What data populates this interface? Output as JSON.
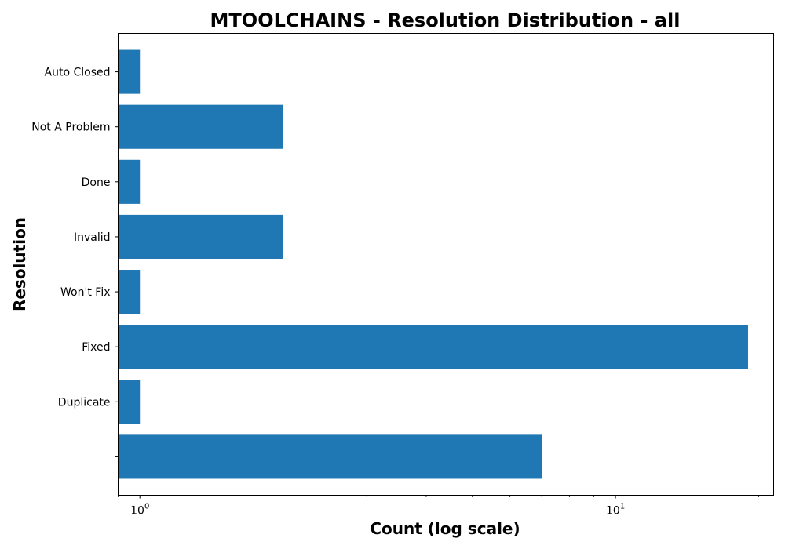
{
  "chart_data": {
    "type": "bar",
    "orientation": "horizontal",
    "title": "MTOOLCHAINS - Resolution Distribution - all",
    "xlabel": "Count (log scale)",
    "ylabel": "Resolution",
    "x_scale": "log",
    "xlim": [
      0.9,
      21.5
    ],
    "x_ticks": [
      {
        "value": 1,
        "base": "10",
        "exp": "0"
      },
      {
        "value": 10,
        "base": "10",
        "exp": "1"
      }
    ],
    "grid": false,
    "bar_color": "#1f77b4",
    "categories": [
      "",
      "Duplicate",
      "Fixed",
      "Won't Fix",
      "Invalid",
      "Done",
      "Not A Problem",
      "Auto Closed"
    ],
    "values": [
      7,
      1,
      19,
      1,
      2,
      1,
      2,
      1
    ]
  }
}
